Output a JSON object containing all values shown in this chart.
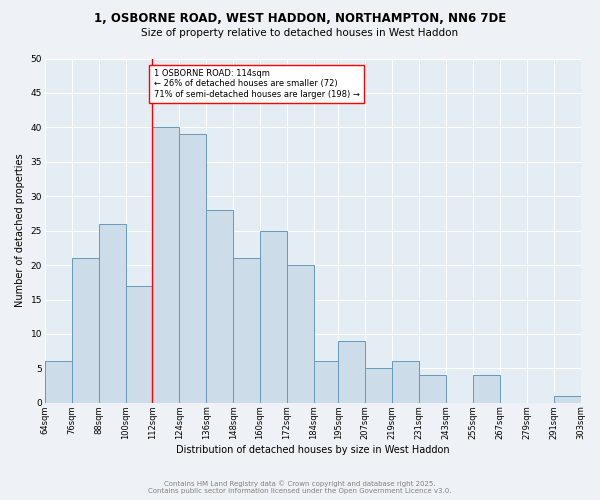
{
  "title_line1": "1, OSBORNE ROAD, WEST HADDON, NORTHAMPTON, NN6 7DE",
  "title_line2": "Size of property relative to detached houses in West Haddon",
  "xlabel": "Distribution of detached houses by size in West Haddon",
  "ylabel": "Number of detached properties",
  "footer_line1": "Contains HM Land Registry data © Crown copyright and database right 2025.",
  "footer_line2": "Contains public sector information licensed under the Open Government Licence v3.0.",
  "bar_edges": [
    64,
    76,
    88,
    100,
    112,
    124,
    136,
    148,
    160,
    172,
    184,
    195,
    207,
    219,
    231,
    243,
    255,
    267,
    279,
    291,
    303
  ],
  "bar_heights": [
    6,
    21,
    26,
    17,
    40,
    39,
    28,
    21,
    25,
    20,
    6,
    9,
    5,
    6,
    4,
    0,
    4,
    0,
    0,
    1
  ],
  "bar_color": "#ccdce8",
  "bar_edgecolor": "#6699bb",
  "vline_x": 112,
  "annotation_text": "1 OSBORNE ROAD: 114sqm\n← 26% of detached houses are smaller (72)\n71% of semi-detached houses are larger (198) →",
  "annotation_box_color": "white",
  "annotation_box_edgecolor": "red",
  "vline_color": "red",
  "ylim": [
    0,
    50
  ],
  "yticks": [
    0,
    5,
    10,
    15,
    20,
    25,
    30,
    35,
    40,
    45,
    50
  ],
  "bg_color": "#eef2f6",
  "plot_bg_color": "#e4ecf4",
  "grid_color": "white",
  "tick_labels": [
    "64sqm",
    "76sqm",
    "88sqm",
    "100sqm",
    "112sqm",
    "124sqm",
    "136sqm",
    "148sqm",
    "160sqm",
    "172sqm",
    "184sqm",
    "195sqm",
    "207sqm",
    "219sqm",
    "231sqm",
    "243sqm",
    "255sqm",
    "267sqm",
    "279sqm",
    "291sqm",
    "303sqm"
  ],
  "title_fontsize": 8.5,
  "subtitle_fontsize": 7.5,
  "axis_label_fontsize": 7,
  "tick_fontsize": 6,
  "annotation_fontsize": 6,
  "footer_fontsize": 5
}
